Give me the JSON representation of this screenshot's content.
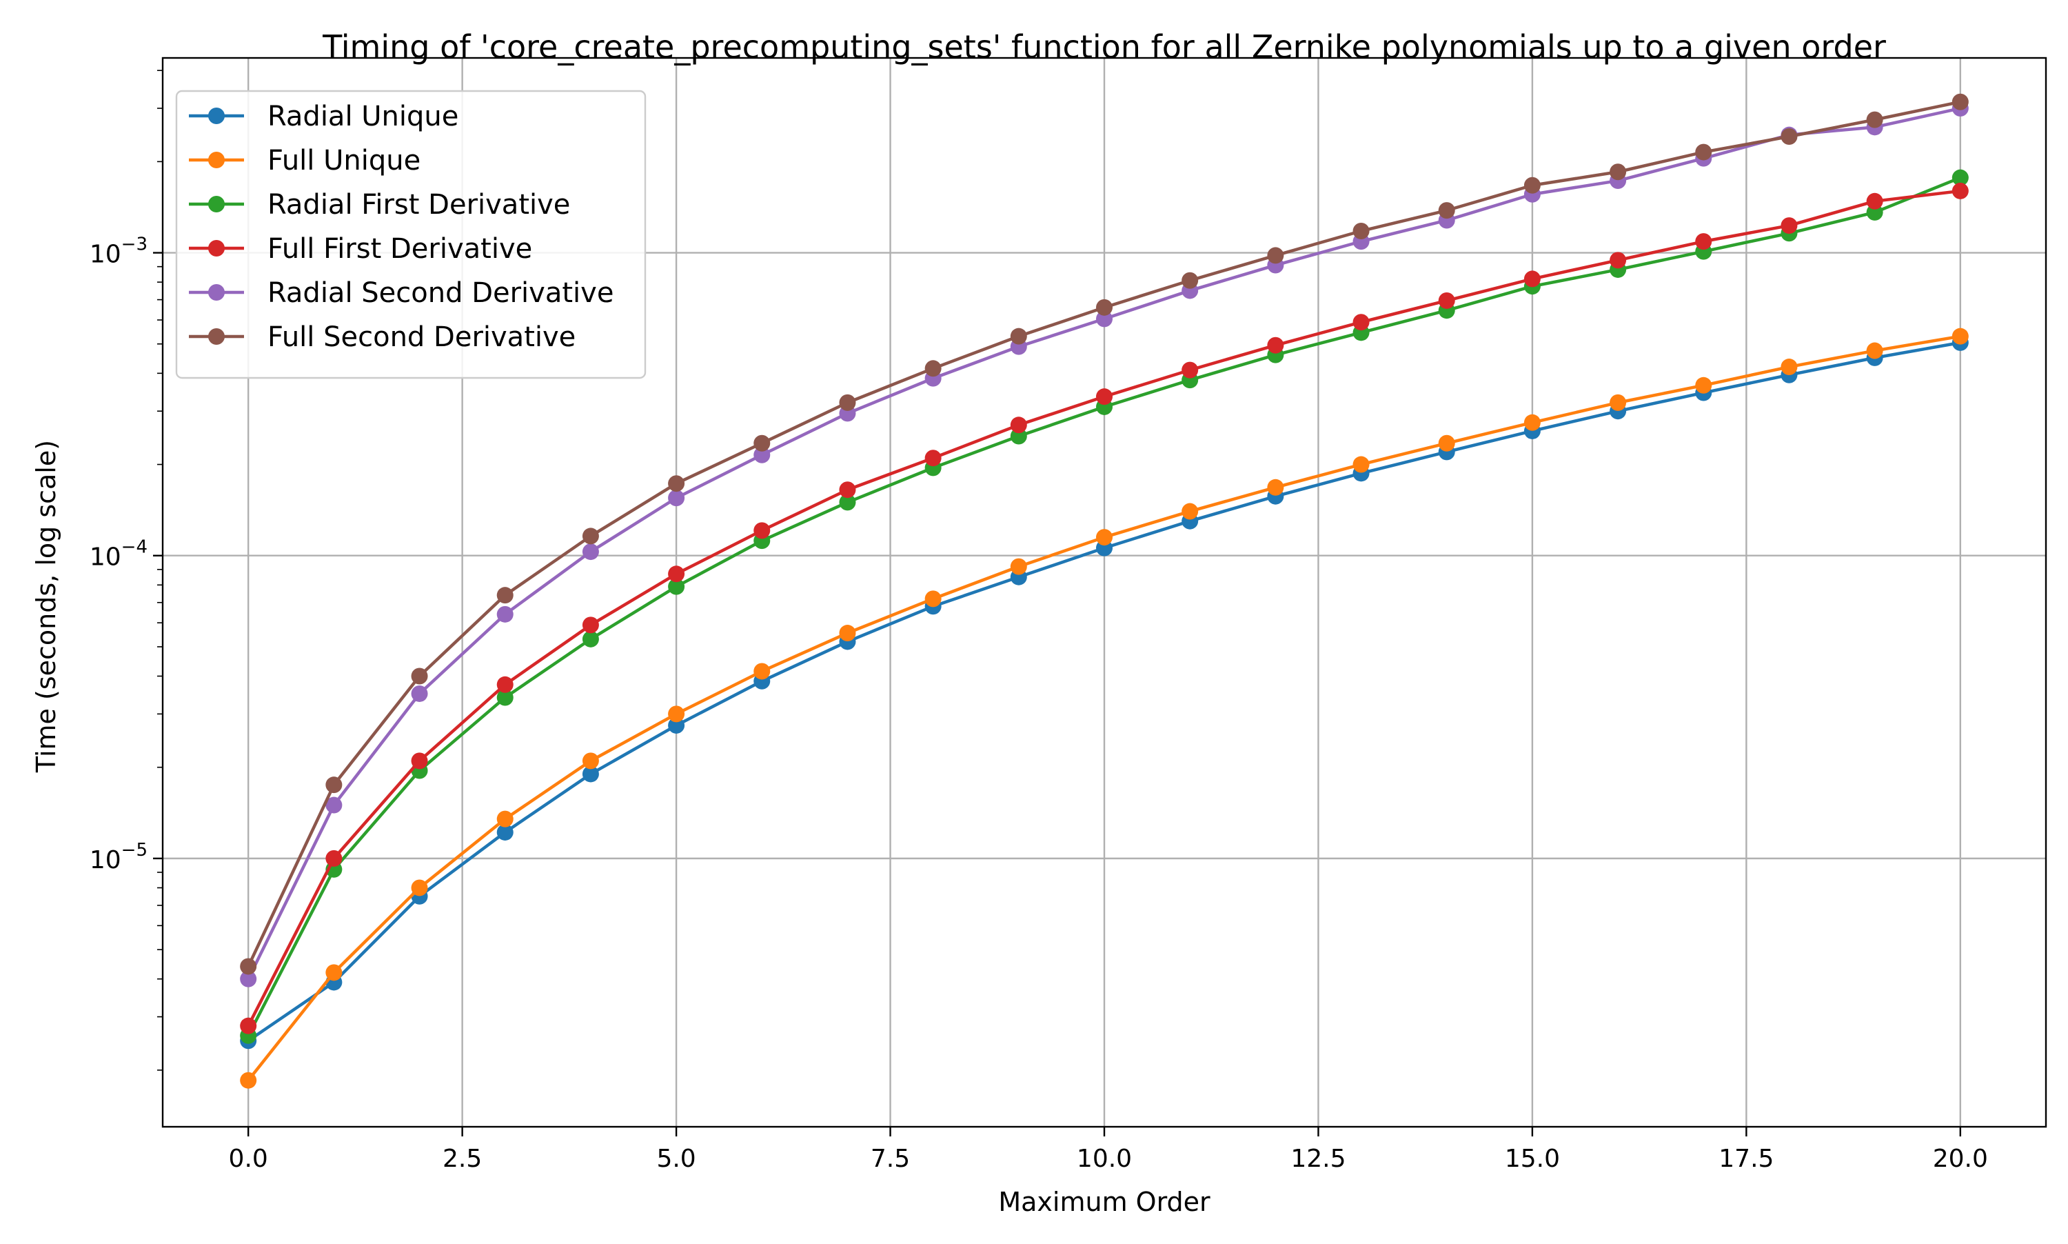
{
  "chart_data": {
    "type": "line",
    "title": "Timing of 'core_create_precomputing_sets' function for all Zernike polynomials up to a given order",
    "xlabel": "Maximum Order",
    "ylabel": "Time (seconds, log scale)",
    "xlim": [
      -1.0,
      21.0
    ],
    "ylim": [
      1.3e-06,
      0.0044
    ],
    "yscale": "log",
    "grid": true,
    "legend_position": "top-left",
    "x_ticks": [
      0.0,
      2.5,
      5.0,
      7.5,
      10.0,
      12.5,
      15.0,
      17.5,
      20.0
    ],
    "x_tick_labels": [
      "0.0",
      "2.5",
      "5.0",
      "7.5",
      "10.0",
      "12.5",
      "15.0",
      "17.5",
      "20.0"
    ],
    "y_ticks": [
      1e-05,
      0.0001,
      0.001
    ],
    "y_tick_labels": [
      {
        "base": "10",
        "exp": "−5"
      },
      {
        "base": "10",
        "exp": "−4"
      },
      {
        "base": "10",
        "exp": "−3"
      }
    ],
    "x": [
      0,
      1,
      2,
      3,
      4,
      5,
      6,
      7,
      8,
      9,
      10,
      11,
      12,
      13,
      14,
      15,
      16,
      17,
      18,
      19,
      20
    ],
    "series": [
      {
        "name": "Radial Unique",
        "color": "#1f77b4",
        "values": [
          2.5e-06,
          3.9e-06,
          7.5e-06,
          1.22e-05,
          1.9e-05,
          2.75e-05,
          3.85e-05,
          5.2e-05,
          6.8e-05,
          8.5e-05,
          0.000106,
          0.00013,
          0.000157,
          0.000187,
          0.00022,
          0.000258,
          0.0003,
          0.000345,
          0.000395,
          0.00045,
          0.000505
        ]
      },
      {
        "name": "Full Unique",
        "color": "#ff7f0e",
        "values": [
          1.85e-06,
          4.2e-06,
          8e-06,
          1.35e-05,
          2.1e-05,
          3e-05,
          4.15e-05,
          5.55e-05,
          7.2e-05,
          9.2e-05,
          0.000115,
          0.00014,
          0.000168,
          0.0002,
          0.000235,
          0.000275,
          0.00032,
          0.000365,
          0.00042,
          0.000475,
          0.00053
        ]
      },
      {
        "name": "Radial First Derivative",
        "color": "#2ca02c",
        "values": [
          2.6e-06,
          9.2e-06,
          1.95e-05,
          3.4e-05,
          5.3e-05,
          7.9e-05,
          0.000112,
          0.00015,
          0.000195,
          0.000248,
          0.00031,
          0.00038,
          0.00046,
          0.000545,
          0.000645,
          0.000775,
          0.00088,
          0.00101,
          0.00116,
          0.00136,
          0.00177
        ]
      },
      {
        "name": "Full First Derivative",
        "color": "#d62728",
        "values": [
          2.8e-06,
          1e-05,
          2.1e-05,
          3.75e-05,
          5.9e-05,
          8.7e-05,
          0.000121,
          0.000165,
          0.00021,
          0.00027,
          0.000335,
          0.00041,
          0.000495,
          0.00059,
          0.000695,
          0.00082,
          0.000945,
          0.00109,
          0.00123,
          0.00148,
          0.0016
        ]
      },
      {
        "name": "Radial Second Derivative",
        "color": "#9467bd",
        "values": [
          4e-06,
          1.5e-05,
          3.5e-05,
          6.4e-05,
          0.000103,
          0.000155,
          0.000215,
          0.000295,
          0.000385,
          0.00049,
          0.000605,
          0.00075,
          0.00091,
          0.00109,
          0.00128,
          0.00156,
          0.00173,
          0.00205,
          0.00245,
          0.0026,
          0.003
        ]
      },
      {
        "name": "Full Second Derivative",
        "color": "#8c564b",
        "values": [
          4.4e-06,
          1.75e-05,
          4e-05,
          7.4e-05,
          0.000116,
          0.000173,
          0.000235,
          0.00032,
          0.000415,
          0.00053,
          0.00066,
          0.00081,
          0.00098,
          0.00118,
          0.00138,
          0.00167,
          0.00185,
          0.00215,
          0.00242,
          0.00275,
          0.00315
        ]
      }
    ]
  }
}
